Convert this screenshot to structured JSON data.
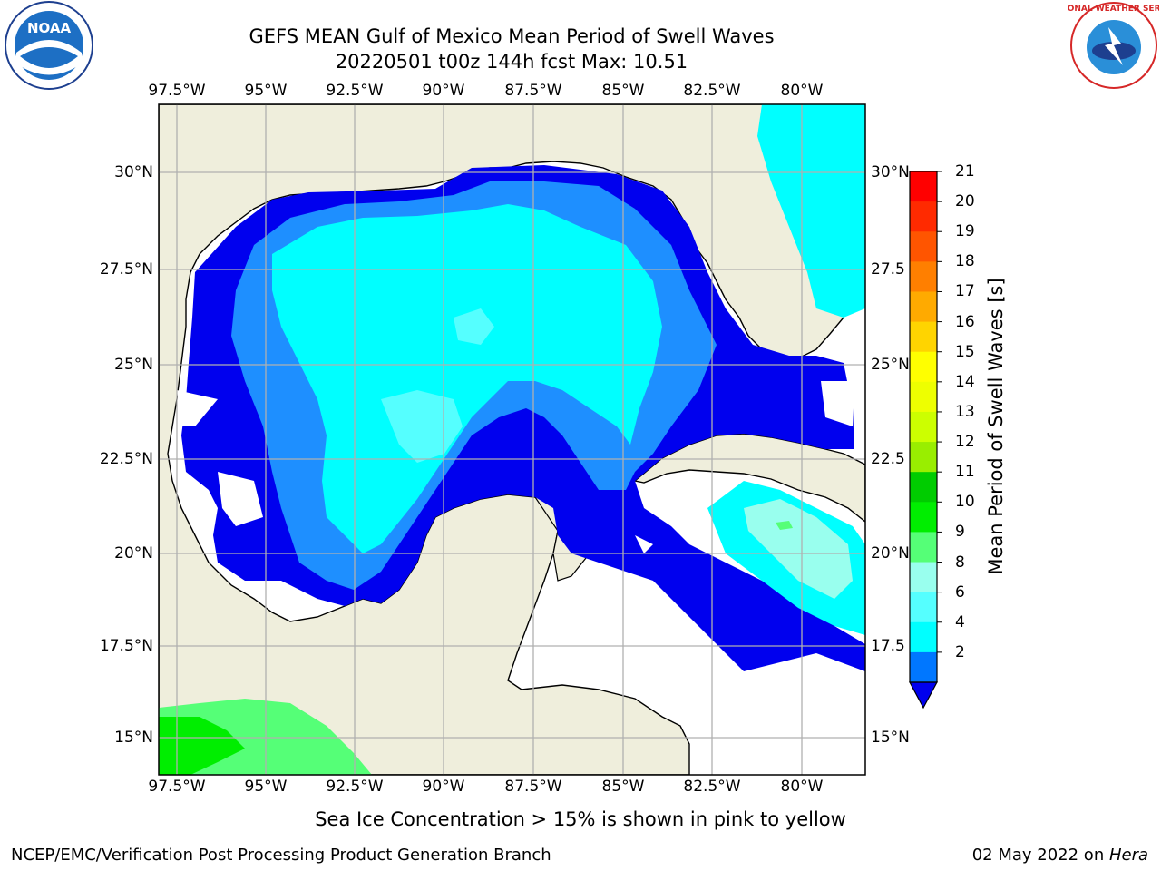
{
  "header": {
    "title_line1": "GEFS MEAN Gulf of Mexico Mean Period of Swell Waves",
    "title_line2": "20220501 t00z 144h fcst   Max: 10.51"
  },
  "logos": {
    "left": "NOAA",
    "right": "NATIONAL WEATHER SERVICE"
  },
  "axes": {
    "lon_labels": [
      "97.5°W",
      "95°W",
      "92.5°W",
      "90°W",
      "87.5°W",
      "85°W",
      "82.5°W",
      "80°W"
    ],
    "lat_labels_left": [
      "30°N",
      "27.5°N",
      "25°N",
      "22.5°N",
      "20°N",
      "17.5°N",
      "15°N"
    ],
    "lat_labels_right": [
      "30°N",
      "27.5",
      "25°N",
      "22.5",
      "20°N",
      "17.5",
      "15°N"
    ]
  },
  "colorbar": {
    "label": "Mean Period of Swell Waves [s]",
    "ticks": [
      "21",
      "20",
      "19",
      "18",
      "17",
      "16",
      "15",
      "14",
      "13",
      "12",
      "11",
      "10",
      "9",
      "8",
      "6",
      "4",
      "2"
    ],
    "colors": [
      "#ff0000",
      "#ff2a00",
      "#ff5500",
      "#ff7f00",
      "#ffaa00",
      "#ffd400",
      "#ffff00",
      "#eeff00",
      "#ccff00",
      "#99ee00",
      "#00cc00",
      "#00ee00",
      "#55ff77",
      "#99ffee",
      "#55ffff",
      "#00ffff",
      "#0077ff"
    ],
    "extend_color": "#0000ee"
  },
  "map_colors": {
    "land": "#efeedc",
    "sea_white": "#ffffff",
    "dark_blue": "#0000ee",
    "mid_blue": "#1e90ff",
    "light_blue": "#3fa9ff",
    "cyan": "#00ffff",
    "aqua": "#55ffff",
    "light_aqua": "#99ffee",
    "green": "#55ff77",
    "bright_green": "#00ee00",
    "grid": "#b0b0b0"
  },
  "footer": {
    "subtitle": "Sea Ice Concentration > 15% is shown in pink to yellow",
    "left": "NCEP/EMC/Verification Post Processing Product Generation Branch",
    "right_prefix": "02 May 2022 on ",
    "right_machine": "Hera"
  }
}
